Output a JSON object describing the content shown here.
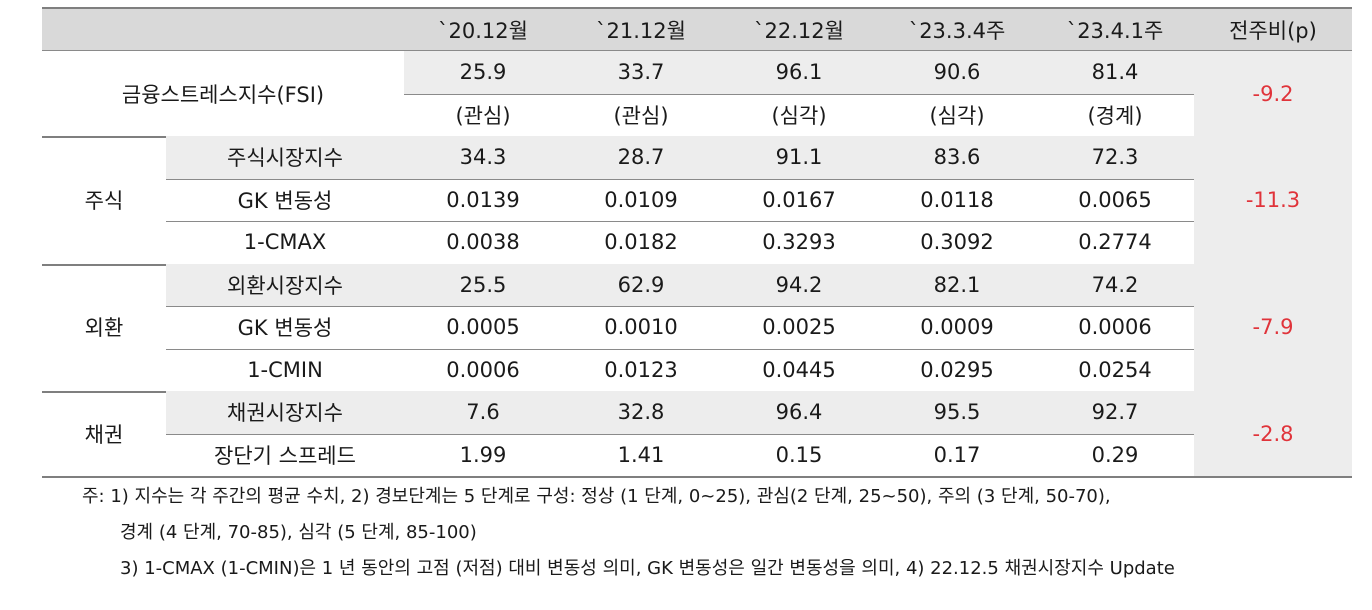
{
  "table": {
    "headers": [
      "",
      "",
      "`20.12월",
      "`21.12월",
      "`22.12월",
      "`23.3.4주",
      "`23.4.1주",
      "전주비(p)"
    ],
    "fsi": {
      "label": "금융스트레스지수(FSI)",
      "values": [
        "25.9",
        "33.7",
        "96.1",
        "90.6",
        "81.4"
      ],
      "levels": [
        "(관심)",
        "(관심)",
        "(심각)",
        "(심각)",
        "(경계)"
      ],
      "change": "-9.2"
    },
    "groups": [
      {
        "name": "주식",
        "change": "-11.3",
        "rows": [
          {
            "label": "주식시장지수",
            "values": [
              "34.3",
              "28.7",
              "91.1",
              "83.6",
              "72.3"
            ]
          },
          {
            "label": "GK 변동성",
            "values": [
              "0.0139",
              "0.0109",
              "0.0167",
              "0.0118",
              "0.0065"
            ]
          },
          {
            "label": "1-CMAX",
            "values": [
              "0.0038",
              "0.0182",
              "0.3293",
              "0.3092",
              "0.2774"
            ]
          }
        ]
      },
      {
        "name": "외환",
        "change": "-7.9",
        "rows": [
          {
            "label": "외환시장지수",
            "values": [
              "25.5",
              "62.9",
              "94.2",
              "82.1",
              "74.2"
            ]
          },
          {
            "label": "GK 변동성",
            "values": [
              "0.0005",
              "0.0010",
              "0.0025",
              "0.0009",
              "0.0006"
            ]
          },
          {
            "label": "1-CMIN",
            "values": [
              "0.0006",
              "0.0123",
              "0.0445",
              "0.0295",
              "0.0254"
            ]
          }
        ]
      },
      {
        "name": "채권",
        "change": "-2.8",
        "rows": [
          {
            "label": "채권시장지수",
            "values": [
              "7.6",
              "32.8",
              "96.4",
              "95.5",
              "92.7"
            ]
          },
          {
            "label": "장단기 스프레드",
            "values": [
              "1.99",
              "1.41",
              "0.15",
              "0.17",
              "0.29"
            ]
          }
        ]
      }
    ]
  },
  "notes": [
    "주: 1) 지수는 각 주간의 평균 수치, 2) 경보단계는 5 단계로 구성: 정상 (1 단계, 0~25), 관심(2 단계, 25~50), 주의 (3 단계, 50-70),",
    "경계 (4 단계, 70-85), 심각 (5 단계, 85-100)",
    "3) 1-CMAX (1-CMIN)은 1 년 동안의 고점 (저점) 대비 변동성 의미, GK 변동성은 일간 변동성을 의미, 4) 22.12.5 채권시장지수 Update"
  ],
  "colors": {
    "header_bg": "#d9d9d9",
    "shade_bg": "#ededed",
    "negative": "#e0333a",
    "rule": "#7f7f7f"
  }
}
